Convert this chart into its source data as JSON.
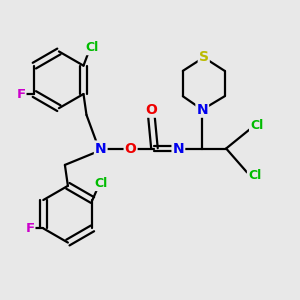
{
  "background_color": "#e8e8e8",
  "atom_colors": {
    "C": "#000000",
    "Cl": "#00bb00",
    "F": "#cc00cc",
    "N": "#0000ee",
    "O": "#ee0000",
    "S": "#bbbb00"
  },
  "bond_color": "#000000",
  "bond_width": 1.6,
  "figsize": [
    3.0,
    3.0
  ],
  "dpi": 100
}
